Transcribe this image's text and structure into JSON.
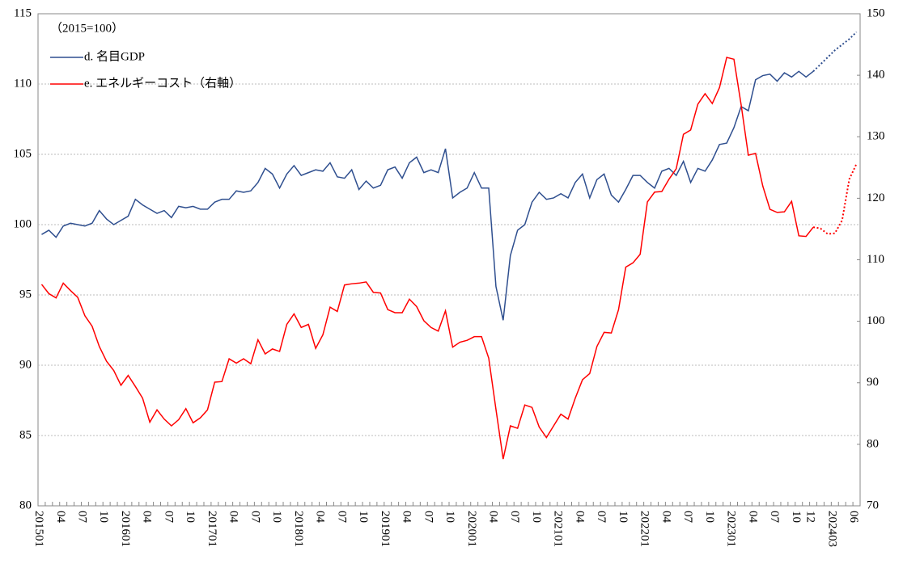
{
  "chart_data": {
    "type": "line",
    "annotation": "（2015=100）",
    "categories": [
      "201501",
      null,
      null,
      "04",
      null,
      null,
      "07",
      null,
      null,
      "10",
      null,
      null,
      "201601",
      null,
      null,
      "04",
      null,
      null,
      "07",
      null,
      null,
      "10",
      null,
      null,
      "201701",
      null,
      null,
      "04",
      null,
      null,
      "07",
      null,
      null,
      "10",
      null,
      null,
      "201801",
      null,
      null,
      "04",
      null,
      null,
      "07",
      null,
      null,
      "10",
      null,
      null,
      "201901",
      null,
      null,
      "04",
      null,
      null,
      "07",
      null,
      null,
      "10",
      null,
      null,
      "202001",
      null,
      null,
      "04",
      null,
      null,
      "07",
      null,
      null,
      "10",
      null,
      null,
      "202101",
      null,
      null,
      "04",
      null,
      null,
      "07",
      null,
      null,
      "10",
      null,
      null,
      "202201",
      null,
      null,
      "04",
      null,
      null,
      "07",
      null,
      null,
      "10",
      null,
      null,
      "202301",
      null,
      null,
      "04",
      null,
      null,
      "07",
      null,
      null,
      "10",
      null,
      "12",
      null,
      null,
      "202403",
      null,
      null,
      "06"
    ],
    "series": [
      {
        "name": "d. 名目GDP",
        "color": "#2f4f8f",
        "axis": "y",
        "dotted": false,
        "values": [
          99.3,
          99.6,
          99.1,
          99.9,
          100.1,
          100.0,
          99.9,
          100.1,
          101.0,
          100.4,
          100.0,
          100.3,
          100.6,
          101.8,
          101.4,
          101.1,
          100.8,
          101.0,
          100.5,
          101.3,
          101.2,
          101.3,
          101.1,
          101.1,
          101.6,
          101.8,
          101.8,
          102.4,
          102.3,
          102.4,
          103.0,
          104.0,
          103.6,
          102.6,
          103.6,
          104.2,
          103.5,
          103.7,
          103.9,
          103.8,
          104.4,
          103.4,
          103.3,
          103.9,
          102.5,
          103.1,
          102.6,
          102.8,
          103.9,
          104.1,
          103.3,
          104.4,
          104.8,
          103.7,
          103.9,
          103.7,
          105.4,
          101.9,
          102.3,
          102.6,
          103.7,
          102.6,
          102.6,
          95.6,
          93.2,
          97.8,
          99.6,
          100.0,
          101.6,
          102.3,
          101.8,
          101.9,
          102.2,
          101.9,
          103.0,
          103.6,
          101.9,
          103.2,
          103.6,
          102.1,
          101.6,
          102.5,
          103.5,
          103.5,
          103.0,
          102.6,
          103.8,
          104.0,
          103.5,
          104.5,
          103.0,
          104.0,
          103.8,
          104.6,
          105.7,
          105.8,
          106.9,
          108.4,
          108.1,
          110.3,
          110.6,
          110.7,
          110.2,
          110.8,
          110.5,
          110.9,
          110.5,
          110.9,
          null,
          null,
          null,
          null,
          null,
          null
        ]
      },
      {
        "name": "e. エネルギーコスト（右軸）",
        "color": "#ff0000",
        "axis": "y2",
        "dotted": false,
        "values": [
          106.0,
          104.5,
          103.8,
          106.2,
          105.0,
          103.9,
          100.9,
          99.2,
          95.9,
          93.5,
          92.0,
          89.6,
          91.2,
          89.4,
          87.5,
          83.6,
          85.6,
          84.1,
          83.0,
          84.0,
          85.8,
          83.5,
          84.3,
          85.6,
          90.1,
          90.2,
          93.9,
          93.2,
          93.9,
          93.1,
          97.0,
          94.7,
          95.5,
          95.1,
          99.5,
          101.2,
          99.0,
          99.5,
          95.6,
          97.8,
          102.3,
          101.6,
          105.9,
          106.1,
          106.2,
          106.4,
          104.7,
          104.6,
          101.9,
          101.4,
          101.4,
          103.6,
          102.4,
          100.1,
          99.0,
          98.4,
          101.7,
          95.8,
          96.6,
          96.9,
          97.5,
          97.5,
          94.0,
          85.7,
          77.6,
          83.0,
          82.6,
          86.4,
          86.0,
          82.8,
          81.1,
          83.0,
          84.9,
          84.1,
          87.5,
          90.5,
          91.5,
          95.9,
          98.2,
          98.1,
          101.9,
          108.8,
          109.5,
          110.9,
          119.4,
          121.0,
          121.1,
          123.1,
          124.8,
          130.4,
          131.1,
          135.3,
          137.0,
          135.4,
          138.0,
          142.9,
          142.6,
          135.2,
          127.0,
          127.3,
          122.0,
          118.2,
          117.7,
          117.8,
          119.5,
          113.9,
          113.8,
          115.3,
          null,
          null,
          null,
          null,
          null,
          null
        ]
      },
      {
        "color": "#2f4f8f",
        "axis": "y",
        "dotted": true,
        "values": [
          null,
          null,
          null,
          null,
          null,
          null,
          null,
          null,
          null,
          null,
          null,
          null,
          null,
          null,
          null,
          null,
          null,
          null,
          null,
          null,
          null,
          null,
          null,
          null,
          null,
          null,
          null,
          null,
          null,
          null,
          null,
          null,
          null,
          null,
          null,
          null,
          null,
          null,
          null,
          null,
          null,
          null,
          null,
          null,
          null,
          null,
          null,
          null,
          null,
          null,
          null,
          null,
          null,
          null,
          null,
          null,
          null,
          null,
          null,
          null,
          null,
          null,
          null,
          null,
          null,
          null,
          null,
          null,
          null,
          null,
          null,
          null,
          null,
          null,
          null,
          null,
          null,
          null,
          null,
          null,
          null,
          null,
          null,
          null,
          null,
          null,
          null,
          null,
          null,
          null,
          null,
          null,
          null,
          null,
          null,
          null,
          null,
          null,
          null,
          null,
          null,
          null,
          null,
          null,
          null,
          null,
          null,
          110.9,
          111.4,
          111.9,
          112.4,
          112.8,
          113.2,
          113.7
        ]
      },
      {
        "color": "#ff0000",
        "axis": "y2",
        "dotted": true,
        "values": [
          null,
          null,
          null,
          null,
          null,
          null,
          null,
          null,
          null,
          null,
          null,
          null,
          null,
          null,
          null,
          null,
          null,
          null,
          null,
          null,
          null,
          null,
          null,
          null,
          null,
          null,
          null,
          null,
          null,
          null,
          null,
          null,
          null,
          null,
          null,
          null,
          null,
          null,
          null,
          null,
          null,
          null,
          null,
          null,
          null,
          null,
          null,
          null,
          null,
          null,
          null,
          null,
          null,
          null,
          null,
          null,
          null,
          null,
          null,
          null,
          null,
          null,
          null,
          null,
          null,
          null,
          null,
          null,
          null,
          null,
          null,
          null,
          null,
          null,
          null,
          null,
          null,
          null,
          null,
          null,
          null,
          null,
          null,
          null,
          null,
          null,
          null,
          null,
          null,
          null,
          null,
          null,
          null,
          null,
          null,
          null,
          null,
          null,
          null,
          null,
          null,
          null,
          null,
          null,
          null,
          null,
          null,
          115.3,
          115.1,
          114.2,
          114.3,
          116.4,
          123.1,
          125.6
        ]
      }
    ],
    "ylim": [
      80,
      115
    ],
    "yticks": [
      80,
      85,
      90,
      95,
      100,
      105,
      110,
      115
    ],
    "y2lim": [
      70,
      150
    ],
    "y2ticks": [
      70,
      80,
      90,
      100,
      110,
      120,
      130,
      140,
      150
    ],
    "grid": true,
    "legend": "upper left"
  }
}
